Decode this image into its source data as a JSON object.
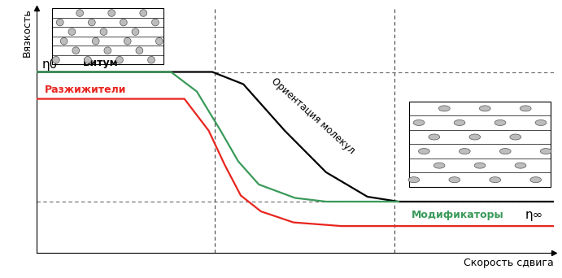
{
  "chart_data": {
    "type": "line",
    "x_label": "Скорость сдвига",
    "y_label": "Вязкость",
    "xlim": [
      0,
      10
    ],
    "ylim": [
      0,
      10
    ],
    "xticks": [],
    "yticks": [],
    "tick_labels": false,
    "grid": false,
    "series": [
      {
        "name": "Битум",
        "color": "#000000",
        "line_style": "solid",
        "x": [
          0,
          3.4,
          4.0,
          4.8,
          5.6,
          6.4,
          7.0,
          10
        ],
        "values": [
          7.4,
          7.4,
          6.9,
          5.0,
          3.3,
          2.3,
          2.1,
          2.1
        ]
      },
      {
        "name": "Разжижители",
        "color": "#e8251f",
        "line_style": "solid",
        "x": [
          0,
          2.86,
          3.33,
          3.64,
          3.95,
          4.34,
          4.97,
          5.9,
          10
        ],
        "values": [
          6.3,
          6.3,
          5.0,
          3.6,
          2.35,
          1.7,
          1.25,
          1.1,
          1.1
        ]
      },
      {
        "name": "Модификаторы",
        "color": "#3a9a5a",
        "line_style": "solid",
        "x": [
          0,
          2.6,
          3.1,
          3.56,
          3.9,
          4.3,
          5.0,
          5.6,
          7.0
        ],
        "values": [
          7.4,
          7.4,
          6.6,
          5.0,
          3.75,
          2.8,
          2.25,
          2.1,
          2.1
        ]
      }
    ],
    "annotations": [
      "Ориентация молекул",
      "η0",
      "η∞"
    ],
    "reference_lines": {
      "x": [
        3.44,
        6.92
      ],
      "y": [
        7.4,
        2.1
      ]
    }
  }
}
